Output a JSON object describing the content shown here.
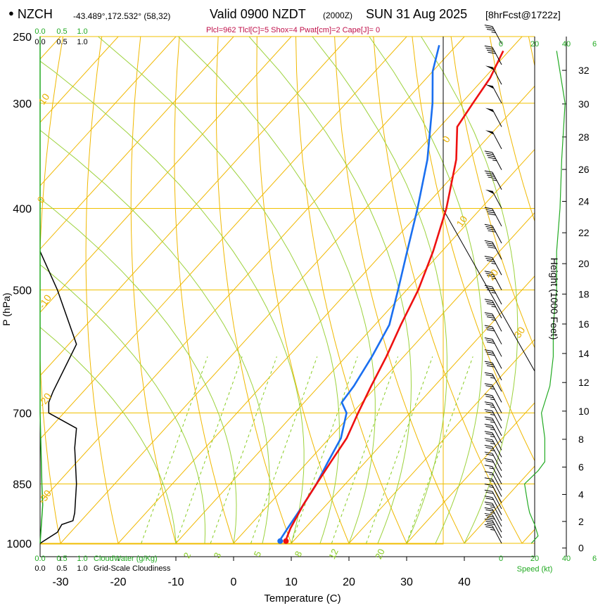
{
  "header": {
    "station": "NZCH",
    "coords": "-43.489°,172.532° (58,32)",
    "valid": "Valid 0900 NZDT",
    "utc": "(2000Z)",
    "date": "SUN 31 Aug 2025",
    "forecast": "[8hrFcst@1722z]",
    "indices": "Plcl=962 Tlcl[C]=5 Shox=4 Pwat[cm]=2 Cape[J]= 0"
  },
  "colors": {
    "temperature": "#ee1111",
    "dewpoint": "#1a6ff0",
    "isotherm": "#f0b800",
    "mixing_ratio": "#88cc22",
    "cloud": "#22aa22",
    "height_scale": "#000000"
  },
  "chart_data": {
    "type": "line",
    "title": "NZCH skew-T sounding",
    "xlabel": "Temperature (C)",
    "ylabel": "P (hPa)",
    "right_label": "Height (1000 Feet)",
    "x_ticks": [
      "-30",
      "-20",
      "-10",
      "0",
      "10",
      "20",
      "30",
      "40"
    ],
    "pressure_ticks": [
      "250",
      "300",
      "400",
      "500",
      "700",
      "850",
      "1000"
    ],
    "height_ticks": [
      "0",
      "2",
      "4",
      "6",
      "8",
      "10",
      "12",
      "14",
      "16",
      "18",
      "20",
      "22",
      "24",
      "26",
      "28",
      "30",
      "32"
    ],
    "isotherm_labels": [
      "10",
      "0",
      "-10",
      "-20",
      "-30",
      "0",
      "10",
      "20",
      "30"
    ],
    "mixing_ratio_labels": [
      "2",
      "3",
      "5",
      "8",
      "12",
      "20"
    ],
    "cloud_axis_labels": [
      "0.0",
      "0.5",
      "1.0"
    ],
    "cloud_legend": "CloudWater (g/Kg)",
    "cloudiness_legend": "Grid-Scale Cloudiness",
    "speed_ticks": [
      "0",
      "20",
      "40",
      "6"
    ],
    "speed_label": "Speed (kt)",
    "temperature": {
      "pressure": [
        990,
        960,
        900,
        850,
        800,
        750,
        700,
        650,
        600,
        550,
        500,
        450,
        400,
        350,
        320,
        300,
        280,
        260
      ],
      "values": [
        8.5,
        7.5,
        6,
        5,
        4,
        3,
        1,
        -1,
        -3,
        -5.5,
        -8,
        -11.5,
        -16,
        -22,
        -27,
        -28,
        -29,
        -31
      ]
    },
    "dewpoint": {
      "pressure": [
        990,
        960,
        900,
        850,
        800,
        750,
        700,
        680,
        650,
        600,
        550,
        500,
        450,
        400,
        350,
        300,
        275,
        256
      ],
      "values": [
        7.5,
        7,
        6,
        5,
        3.5,
        2,
        -1,
        -3.5,
        -4,
        -5.5,
        -7.5,
        -11.5,
        -16,
        -21,
        -27,
        -35,
        -40,
        -43
      ]
    },
    "cloudiness": {
      "pressure": [
        1000,
        970,
        950,
        940,
        920,
        850,
        770,
        730,
        700,
        680,
        660,
        580,
        500,
        450
      ],
      "values": [
        0.0,
        0.2,
        0.25,
        0.38,
        0.4,
        0.42,
        0.4,
        0.42,
        0.1,
        0.1,
        0.15,
        0.42,
        0.2,
        0.0
      ]
    },
    "cloud_water": {
      "pressure": [
        1000,
        900,
        850,
        700,
        300,
        250
      ],
      "values": [
        0.0,
        0.03,
        0.02,
        0.0,
        0.0,
        0.0
      ]
    },
    "wind_speed": {
      "pressure": [
        1000,
        980,
        950,
        920,
        900,
        850,
        820,
        800,
        750,
        700,
        650,
        600,
        550,
        500,
        450,
        400,
        350,
        300,
        260
      ],
      "values": [
        18,
        22,
        20,
        17,
        16,
        14,
        22,
        26,
        26,
        24,
        29,
        31,
        31,
        33,
        33,
        35,
        36,
        38,
        33
      ]
    },
    "wind_barbs": {
      "pressure": [
        1000,
        985,
        970,
        955,
        940,
        925,
        910,
        895,
        880,
        865,
        850,
        835,
        820,
        805,
        790,
        775,
        760,
        745,
        730,
        715,
        700,
        680,
        660,
        640,
        620,
        600,
        580,
        560,
        540,
        520,
        500,
        480,
        460,
        440,
        420,
        400,
        380,
        360,
        340,
        320,
        300,
        285,
        270,
        255
      ],
      "speed_kt": [
        25,
        30,
        30,
        25,
        25,
        20,
        20,
        15,
        15,
        15,
        15,
        20,
        20,
        25,
        25,
        25,
        25,
        25,
        25,
        25,
        25,
        25,
        25,
        30,
        30,
        30,
        30,
        35,
        35,
        35,
        35,
        35,
        40,
        40,
        40,
        50,
        45,
        45,
        50,
        50,
        50,
        50,
        40,
        35
      ]
    }
  }
}
